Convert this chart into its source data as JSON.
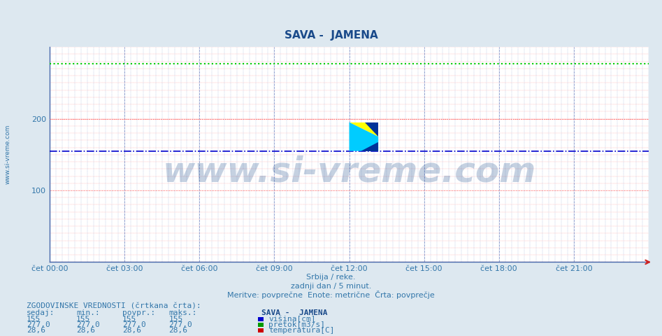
{
  "title": "SAVA -  JAMENA",
  "fig_bg_color": "#dde8f0",
  "plot_bg_color": "#ffffff",
  "ylim": [
    0,
    300
  ],
  "xlim": [
    0,
    288
  ],
  "yticks": [
    100,
    200
  ],
  "xtick_labels": [
    "čet 00:00",
    "čet 03:00",
    "čet 06:00",
    "čet 09:00",
    "čet 12:00",
    "čet 15:00",
    "čet 18:00",
    "čet 21:00"
  ],
  "xtick_positions": [
    0,
    36,
    72,
    108,
    144,
    180,
    216,
    252
  ],
  "hline_green_y": 277.0,
  "hline_blue_y": 155,
  "hline_red_y": 200,
  "title_color": "#1a4a8a",
  "title_fontsize": 11,
  "watermark_text": "www.si-vreme.com",
  "watermark_fontsize": 36,
  "watermark_color": "#1a4a8a",
  "watermark_alpha": 0.25,
  "sidebar_text": "www.si-vreme.com",
  "subtitle1": "Srbija / reke.",
  "subtitle2": "zadnji dan / 5 minut.",
  "subtitle3": "Meritve: povprečne  Enote: metrične  Črta: povprečje",
  "subtitle_color": "#3377aa",
  "subtitle_fontsize": 8,
  "hist_label": "ZGODOVINSKE VREDNOSTI (črtkana črta):",
  "stats_header": [
    "sedaj:",
    "min.:",
    "povpr.:",
    "maks.:"
  ],
  "stats_rows": [
    [
      "155",
      "155",
      "155",
      "155"
    ],
    [
      "277,0",
      "277,0",
      "277,0",
      "277,0"
    ],
    [
      "28,6",
      "28,6",
      "28,6",
      "28,6"
    ]
  ],
  "legend_title": "SAVA -  JAMENA",
  "legend_items": [
    "višina[cm]",
    "pretok[m3/s]",
    "temperatura[C]"
  ],
  "legend_colors": [
    "#0000cc",
    "#009900",
    "#cc0000"
  ],
  "table_color": "#3377aa",
  "table_fontsize": 8
}
